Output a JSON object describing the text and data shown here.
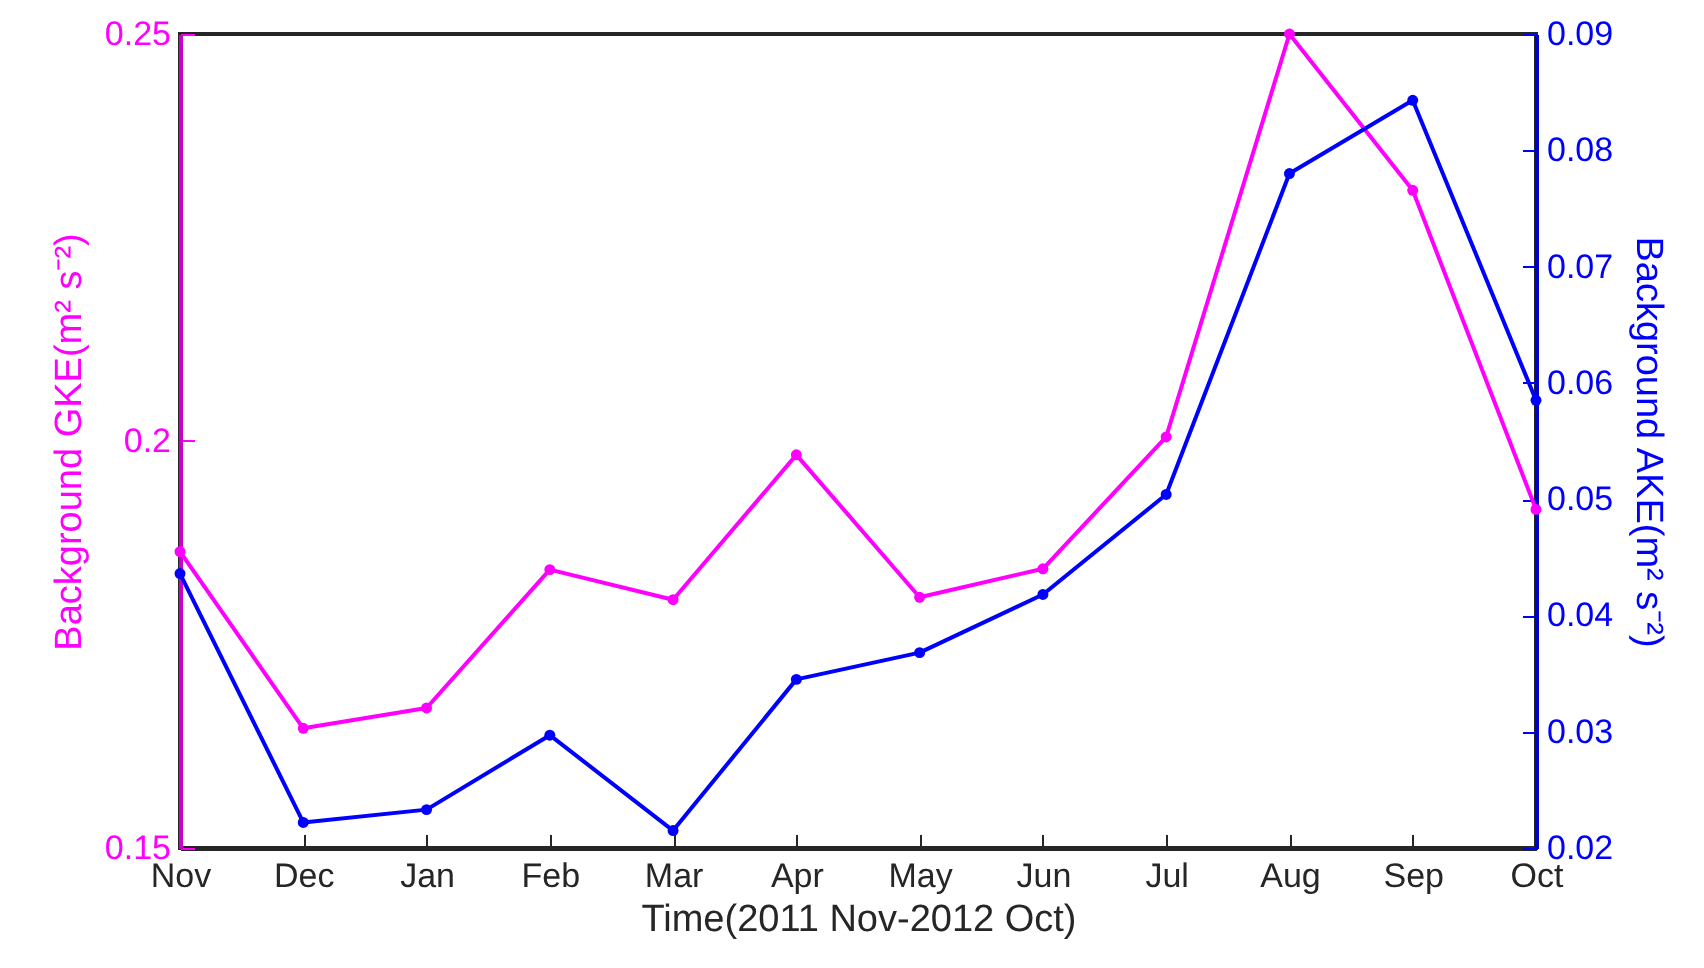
{
  "chart_data": {
    "type": "line",
    "xlabel": "Time(2011 Nov-2012 Oct)",
    "ylabel": "Background GKE(m² s⁻²)",
    "y2label": "Background AKE(m² s⁻²)",
    "categories": [
      "Nov",
      "Dec",
      "Jan",
      "Feb",
      "Mar",
      "Apr",
      "May",
      "Jun",
      "Jul",
      "Aug",
      "Sep",
      "Oct"
    ],
    "series": [
      {
        "color": "#ff00ff",
        "values": [
          0.1864,
          0.1647,
          0.1672,
          0.1842,
          0.1805,
          0.1983,
          0.1808,
          0.1843,
          0.2005,
          0.25,
          0.2308,
          0.1916
        ]
      },
      {
        "color": "#0000ff",
        "axis": "y2",
        "values": [
          0.0436,
          0.0222,
          0.0233,
          0.0297,
          0.0215,
          0.0345,
          0.0368,
          0.0418,
          0.0504,
          0.078,
          0.0843,
          0.0585
        ]
      }
    ],
    "ylim": [
      0.15,
      0.25
    ],
    "yticks": [
      0.15,
      {
        "value": 0.2,
        "label": "0.2"
      },
      0.25
    ],
    "y2lim": [
      0.02,
      0.09
    ],
    "y2ticks": [
      0.02,
      0.03,
      0.04,
      0.05,
      0.06,
      0.07,
      0.08,
      0.09
    ],
    "marker": "circle",
    "line_style": "solid",
    "grid": false
  }
}
